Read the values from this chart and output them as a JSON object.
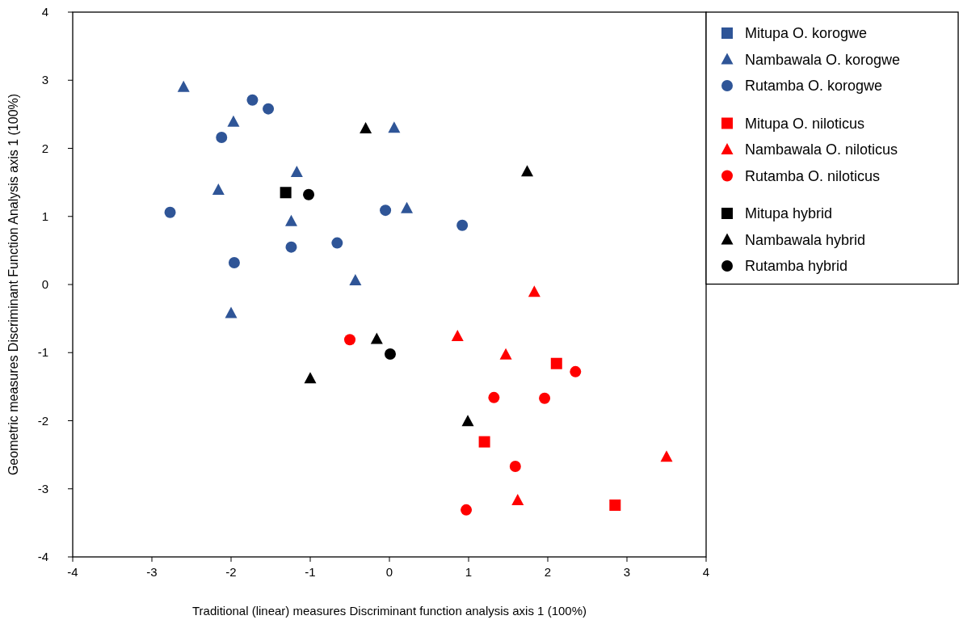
{
  "chart_data": {
    "type": "scatter",
    "xlabel": "Traditional (linear) measures Discriminant function analysis axis 1 (100%)",
    "ylabel": "Geometric measures Discriminant Function Analysis axis 1 (100%)",
    "xlim": [
      -4,
      4
    ],
    "ylim": [
      -4,
      4
    ],
    "xticks": [
      -4,
      -3,
      -2,
      -1,
      0,
      1,
      2,
      3,
      4
    ],
    "yticks": [
      -4,
      -3,
      -2,
      -1,
      0,
      1,
      2,
      3,
      4
    ],
    "grid": false,
    "legend": "top right",
    "series": [
      {
        "name": "Mitupa O. korogwe",
        "color": "#2f5597",
        "marker": "square"
      },
      {
        "name": "Nambawala O. korogwe",
        "color": "#2f5597",
        "marker": "triangle",
        "x": [
          -2.6,
          -1.97,
          0.06,
          -1.17,
          -2.16,
          -1.24,
          0.22,
          -0.43,
          -2.0
        ],
        "values": [
          2.9,
          2.39,
          2.3,
          1.65,
          1.39,
          0.93,
          1.12,
          0.06,
          -0.42
        ]
      },
      {
        "name": "Rutamba O. korogwe",
        "color": "#2f5597",
        "marker": "circle",
        "x": [
          -1.73,
          -1.53,
          -2.12,
          -2.77,
          -1.96,
          -1.24,
          -0.66,
          -0.05,
          0.92
        ],
        "values": [
          2.71,
          2.58,
          2.16,
          1.06,
          0.32,
          0.55,
          0.61,
          1.09,
          0.87
        ]
      },
      {
        "name": "Mitupa O. niloticus",
        "color": "#ff0000",
        "marker": "square",
        "x": [
          2.11,
          1.2,
          2.85
        ],
        "values": [
          -1.16,
          -2.31,
          -3.24
        ]
      },
      {
        "name": "Nambawala O. niloticus",
        "color": "#ff0000",
        "marker": "triangle",
        "x": [
          1.83,
          0.86,
          1.47,
          3.5,
          1.62
        ],
        "values": [
          -0.11,
          -0.76,
          -1.03,
          -2.53,
          -3.17
        ]
      },
      {
        "name": "Rutamba O. niloticus",
        "color": "#ff0000",
        "marker": "circle",
        "x": [
          -0.5,
          1.32,
          1.96,
          2.35,
          1.59,
          0.97
        ],
        "values": [
          -0.81,
          -1.66,
          -1.67,
          -1.28,
          -2.67,
          -3.31
        ]
      },
      {
        "name": "Mitupa hybrid",
        "color": "#000000",
        "marker": "square",
        "x": [
          -1.31
        ],
        "values": [
          1.35
        ]
      },
      {
        "name": "Nambawala hybrid",
        "color": "#000000",
        "marker": "triangle",
        "x": [
          -0.3,
          1.74,
          -0.16,
          -1.0,
          0.99
        ],
        "values": [
          2.29,
          1.66,
          -0.8,
          -1.38,
          -2.01
        ]
      },
      {
        "name": "Rutamba hybrid",
        "color": "#000000",
        "marker": "circle",
        "x": [
          -1.02,
          0.01
        ],
        "values": [
          1.32,
          -1.02
        ]
      }
    ]
  }
}
